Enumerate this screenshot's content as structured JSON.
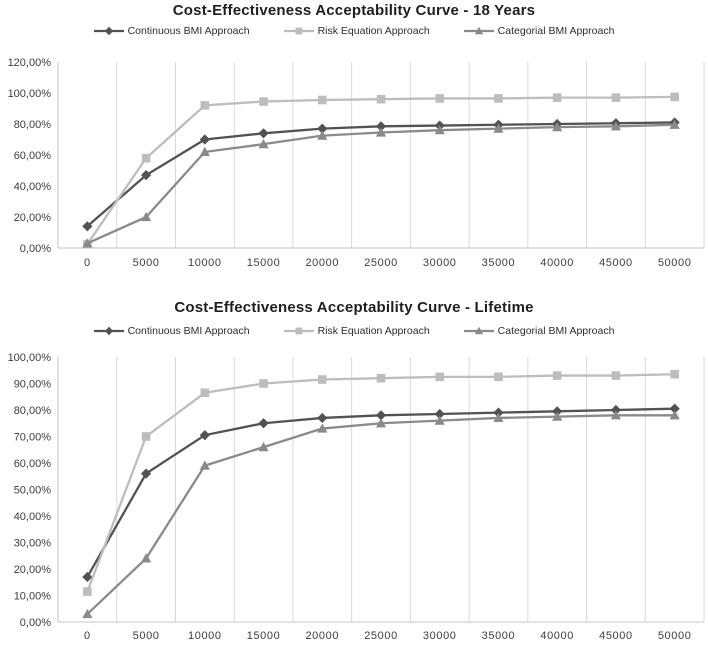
{
  "figure": {
    "background": "#ffffff"
  },
  "colors": {
    "grid": "#d9d9d9",
    "axis": "#c4c4c4",
    "tick_text": "#3d3d3d",
    "title_text": "#1f1f1f",
    "series_dark": "#525252",
    "series_light": "#bdbdbd",
    "series_medium": "#8a8a8a"
  },
  "chart_data": [
    {
      "type": "line",
      "title": "Cost-Effectiveness Acceptability Curve - 18 Years",
      "xlabel": "",
      "ylabel": "",
      "categories": [
        0,
        5000,
        10000,
        15000,
        20000,
        25000,
        30000,
        35000,
        40000,
        45000,
        50000
      ],
      "category_labels": [
        "0",
        "5000",
        "10000",
        "15000",
        "20000",
        "25000",
        "30000",
        "35000",
        "40000",
        "45000",
        "50000"
      ],
      "ylim": [
        0,
        120
      ],
      "ytick_labels": [
        "0,00%",
        "20,00%",
        "40,00%",
        "60,00%",
        "80,00%",
        "100,00%",
        "120,00%"
      ],
      "grid": "vertical-only",
      "legend_position": "top",
      "series": [
        {
          "name": "Continuous BMI Approach",
          "marker": "diamond",
          "color": "#525252",
          "values_pct": [
            14,
            47,
            70,
            74,
            77,
            78.5,
            79,
            79.5,
            80,
            80.5,
            81
          ]
        },
        {
          "name": "Risk Equation Approach",
          "marker": "square",
          "color": "#bdbdbd",
          "values_pct": [
            2.5,
            58,
            92,
            94.5,
            95.5,
            96,
            96.5,
            96.5,
            97,
            97,
            97.5
          ]
        },
        {
          "name": "Categorial BMI Approach",
          "marker": "triangle",
          "color": "#8a8a8a",
          "values_pct": [
            3,
            20,
            62,
            67,
            72.5,
            74.5,
            76,
            77,
            78,
            78.5,
            79.5
          ]
        }
      ]
    },
    {
      "type": "line",
      "title": "Cost-Effectiveness Acceptability Curve - Lifetime",
      "xlabel": "",
      "ylabel": "",
      "categories": [
        0,
        5000,
        10000,
        15000,
        20000,
        25000,
        30000,
        35000,
        40000,
        45000,
        50000
      ],
      "category_labels": [
        "0",
        "5000",
        "10000",
        "15000",
        "20000",
        "25000",
        "30000",
        "35000",
        "40000",
        "45000",
        "50000"
      ],
      "ylim": [
        0,
        100
      ],
      "ytick_labels": [
        "0,00%",
        "10,00%",
        "20,00%",
        "30,00%",
        "40,00%",
        "50,00%",
        "60,00%",
        "70,00%",
        "80,00%",
        "90,00%",
        "100,00%"
      ],
      "grid": "vertical-only",
      "legend_position": "top",
      "series": [
        {
          "name": "Continuous BMI Approach",
          "marker": "diamond",
          "color": "#525252",
          "values_pct": [
            17,
            56,
            70.5,
            75,
            77,
            78,
            78.5,
            79,
            79.5,
            80,
            80.5
          ]
        },
        {
          "name": "Risk Equation Approach",
          "marker": "square",
          "color": "#bdbdbd",
          "values_pct": [
            11.5,
            70,
            86.5,
            90,
            91.5,
            92,
            92.5,
            92.5,
            93,
            93,
            93.5
          ]
        },
        {
          "name": "Categorial BMI Approach",
          "marker": "triangle",
          "color": "#8a8a8a",
          "values_pct": [
            3,
            24,
            59,
            66,
            73,
            75,
            76,
            77,
            77.5,
            78,
            78
          ]
        }
      ]
    }
  ]
}
